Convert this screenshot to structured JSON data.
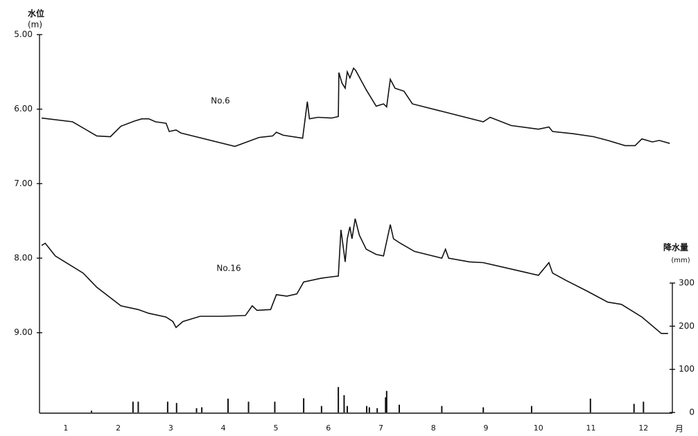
{
  "chart_data": {
    "type": "line",
    "y_label": "水位",
    "y_unit": "(m)",
    "y2_label": "降水量",
    "y2_unit": "(mm)",
    "x_label": "月",
    "xlim": [
      1,
      13.05
    ],
    "xticks": [
      {
        "value": 1.5,
        "label": "1"
      },
      {
        "value": 2.5,
        "label": "2"
      },
      {
        "value": 3.5,
        "label": "3"
      },
      {
        "value": 4.5,
        "label": "4"
      },
      {
        "value": 5.5,
        "label": "5"
      },
      {
        "value": 6.5,
        "label": "6"
      },
      {
        "value": 7.5,
        "label": "7"
      },
      {
        "value": 8.5,
        "label": "8"
      },
      {
        "value": 9.5,
        "label": "9"
      },
      {
        "value": 10.5,
        "label": "10"
      },
      {
        "value": 11.5,
        "label": "11"
      },
      {
        "value": 12.5,
        "label": "12"
      }
    ],
    "ylim": [
      5,
      10.08
    ],
    "y_inverted": true,
    "yticks": [
      {
        "value": 5,
        "label": "5.00"
      },
      {
        "value": 6,
        "label": "6.00"
      },
      {
        "value": 7,
        "label": "7.00"
      },
      {
        "value": 8,
        "label": "8.00"
      },
      {
        "value": 9,
        "label": "9.00"
      }
    ],
    "y2lim": [
      0,
      300
    ],
    "y2ticks": [
      0,
      100,
      200,
      300
    ],
    "series": [
      {
        "name": "No.6",
        "type": "line",
        "color": "#111",
        "x": [
          1.04,
          1.63,
          2.09,
          2.35,
          2.55,
          2.81,
          2.95,
          3.08,
          3.21,
          3.41,
          3.47,
          3.6,
          3.69,
          4.72,
          5.18,
          5.44,
          5.51,
          5.64,
          6.01,
          6.1,
          6.14,
          6.3,
          6.56,
          6.69,
          6.7,
          6.76,
          6.82,
          6.86,
          6.91,
          6.98,
          7.02,
          7.22,
          7.41,
          7.55,
          7.61,
          7.68,
          7.77,
          7.94,
          8.1,
          9.45,
          9.58,
          9.98,
          10.5,
          10.7,
          10.77,
          11.16,
          11.55,
          11.82,
          12.15,
          12.34,
          12.47,
          12.67,
          12.8,
          13.0
        ],
        "values": [
          6.12,
          6.17,
          6.36,
          6.37,
          6.23,
          6.16,
          6.13,
          6.13,
          6.17,
          6.19,
          6.3,
          6.28,
          6.32,
          6.5,
          6.38,
          6.36,
          6.31,
          6.35,
          6.39,
          5.9,
          6.13,
          6.11,
          6.12,
          6.1,
          5.51,
          5.65,
          5.72,
          5.5,
          5.58,
          5.45,
          5.48,
          5.74,
          5.96,
          5.93,
          5.97,
          5.6,
          5.72,
          5.76,
          5.93,
          6.17,
          6.11,
          6.22,
          6.27,
          6.24,
          6.3,
          6.33,
          6.37,
          6.42,
          6.49,
          6.49,
          6.4,
          6.44,
          6.42,
          6.46
        ]
      },
      {
        "name": "No.16",
        "type": "line",
        "color": "#111",
        "x": [
          1.04,
          1.11,
          1.3,
          1.83,
          2.09,
          2.55,
          2.88,
          3.08,
          3.41,
          3.54,
          3.6,
          3.73,
          4.06,
          4.46,
          4.92,
          5.05,
          5.14,
          5.4,
          5.51,
          5.71,
          5.9,
          6.03,
          6.36,
          6.56,
          6.69,
          6.74,
          6.82,
          6.86,
          6.91,
          6.95,
          7.01,
          7.09,
          7.22,
          7.41,
          7.55,
          7.68,
          7.74,
          7.87,
          8.14,
          8.66,
          8.73,
          8.79,
          9.19,
          9.45,
          10.5,
          10.7,
          10.77,
          11.03,
          11.42,
          11.82,
          12.08,
          12.47,
          12.84,
          12.97
        ],
        "values": [
          7.83,
          7.8,
          7.97,
          8.2,
          8.39,
          8.64,
          8.69,
          8.74,
          8.79,
          8.85,
          8.93,
          8.85,
          8.78,
          8.78,
          8.77,
          8.64,
          8.7,
          8.69,
          8.49,
          8.51,
          8.48,
          8.32,
          8.27,
          8.25,
          8.24,
          7.62,
          8.05,
          7.74,
          7.58,
          7.74,
          7.47,
          7.69,
          7.88,
          7.95,
          7.97,
          7.55,
          7.74,
          7.8,
          7.91,
          8.0,
          7.88,
          8.0,
          8.05,
          8.06,
          8.23,
          8.06,
          8.2,
          8.3,
          8.44,
          8.59,
          8.62,
          8.79,
          9.01,
          9.01
        ]
      },
      {
        "type": "bar",
        "axis": "y2",
        "color": "#111",
        "x": [
          1.99,
          2.78,
          2.88,
          3.44,
          3.61,
          3.99,
          4.09,
          4.59,
          4.98,
          5.48,
          6.03,
          6.37,
          6.69,
          6.8,
          6.86,
          7.23,
          7.28,
          7.43,
          7.59,
          7.61,
          7.85,
          8.66,
          9.45,
          10.37,
          11.49,
          12.32,
          12.5
        ],
        "values": [
          4,
          25,
          25,
          25,
          22,
          10,
          12,
          32,
          25,
          25,
          33,
          15,
          59,
          40,
          15,
          15,
          12,
          10,
          35,
          50,
          18,
          15,
          12,
          15,
          32,
          20,
          25
        ]
      }
    ]
  }
}
